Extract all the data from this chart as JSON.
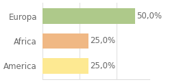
{
  "categories": [
    "America",
    "Africa",
    "Europa"
  ],
  "values": [
    25.0,
    25.0,
    50.0
  ],
  "bar_colors": [
    "#fde992",
    "#f0b884",
    "#aec98a"
  ],
  "label_texts": [
    "25,0%",
    "25,0%",
    "50,0%"
  ],
  "xlim": [
    0,
    58
  ],
  "background_color": "#ffffff",
  "bar_height": 0.62,
  "label_fontsize": 8.5,
  "tick_fontsize": 8.5,
  "grid_color": "#dddddd",
  "text_color": "#666666"
}
